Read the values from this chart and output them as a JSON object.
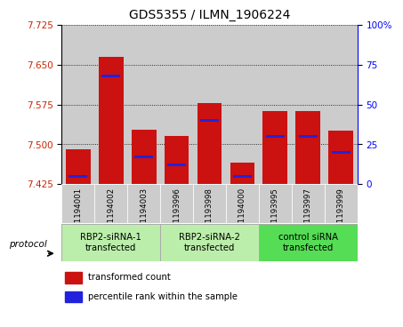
{
  "title": "GDS5355 / ILMN_1906224",
  "samples": [
    "GSM1194001",
    "GSM1194002",
    "GSM1194003",
    "GSM1193996",
    "GSM1193998",
    "GSM1194000",
    "GSM1193995",
    "GSM1193997",
    "GSM1193999"
  ],
  "transformed_counts": [
    7.49,
    7.665,
    7.527,
    7.515,
    7.578,
    7.465,
    7.562,
    7.562,
    7.525
  ],
  "percentile_ranks": [
    5,
    68,
    17,
    12,
    40,
    5,
    30,
    30,
    20
  ],
  "y_min": 7.425,
  "y_max": 7.725,
  "y_ticks": [
    7.425,
    7.5,
    7.575,
    7.65,
    7.725
  ],
  "y2_ticks": [
    0,
    25,
    50,
    75,
    100
  ],
  "groups": [
    {
      "label": "RBP2-siRNA-1\ntransfected",
      "indices": [
        0,
        1,
        2
      ],
      "color": "#bbeeaa"
    },
    {
      "label": "RBP2-siRNA-2\ntransfected",
      "indices": [
        3,
        4,
        5
      ],
      "color": "#bbeeaa"
    },
    {
      "label": "control siRNA\ntransfected",
      "indices": [
        6,
        7,
        8
      ],
      "color": "#55dd55"
    }
  ],
  "bar_color": "#cc1111",
  "blue_color": "#2222dd",
  "bar_bg_color": "#cccccc",
  "title_fontsize": 10,
  "tick_fontsize": 7.5,
  "label_fontsize": 7
}
